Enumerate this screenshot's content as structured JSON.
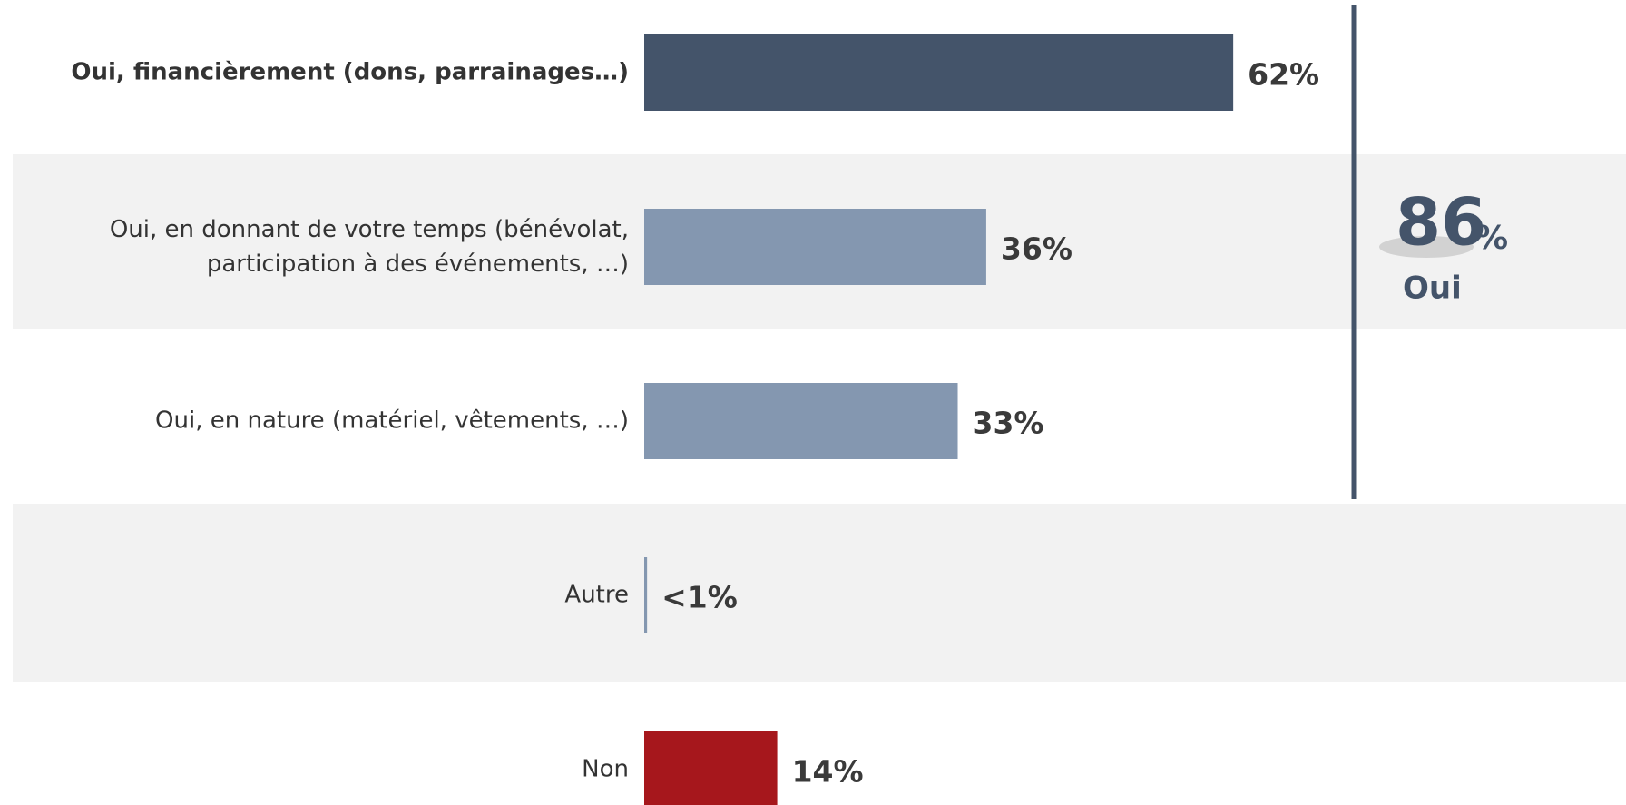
{
  "chart_data": {
    "type": "hbar",
    "categories": [
      "Oui, financièrement (dons, parrainages…)",
      "Oui, en donnant de votre temps (bénévolat,\nparticipation à des événements, …)",
      "Oui, en nature (matériel, vêtements, …)",
      "Autre",
      "Non"
    ],
    "values": [
      62,
      36,
      33,
      0.3,
      14
    ],
    "value_labels": [
      "62%",
      "36%",
      "33%",
      "<1%",
      "14%"
    ],
    "colors": [
      "#44546a",
      "#8497b0",
      "#8497b0",
      "#8497b0",
      "#a6171c"
    ],
    "xlim": [
      0,
      100
    ],
    "summary": {
      "value": 86,
      "suffix": "%",
      "label": "Oui"
    }
  }
}
